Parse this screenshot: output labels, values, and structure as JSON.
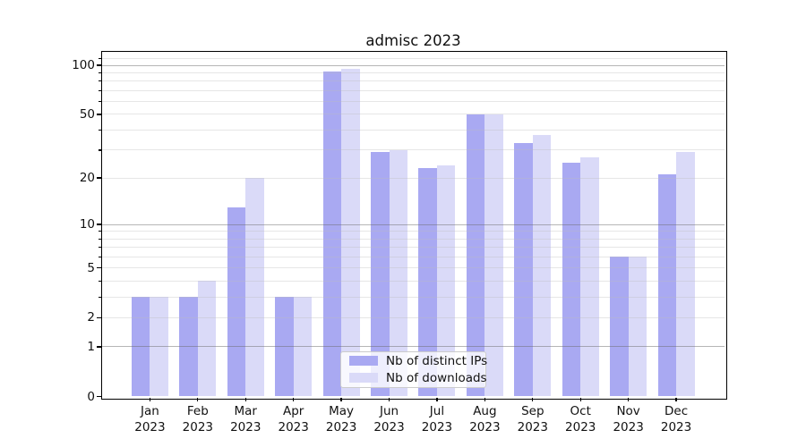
{
  "chart_data": {
    "type": "bar",
    "title": "admisc 2023",
    "categories": [
      "Jan",
      "Feb",
      "Mar",
      "Apr",
      "May",
      "Jun",
      "Jul",
      "Aug",
      "Sep",
      "Oct",
      "Nov",
      "Dec"
    ],
    "year_label": "2023",
    "series": [
      {
        "name": "Nb of distinct IPs",
        "color": "#a9a9f2",
        "values": [
          3,
          3,
          13,
          3,
          92,
          29,
          23,
          50,
          33,
          25,
          6,
          21
        ]
      },
      {
        "name": "Nb of downloads",
        "color": "#dadaf8",
        "values": [
          3,
          4,
          20,
          3,
          95,
          30,
          24,
          50,
          37,
          27,
          6,
          29
        ]
      }
    ],
    "yscale": "log1p",
    "ylim": [
      0,
      120
    ],
    "ytick_values": [
      0,
      1,
      2,
      5,
      10,
      20,
      50,
      100
    ],
    "ytick_labels": [
      "0",
      "1",
      "2",
      "5",
      "10",
      "20",
      "50",
      "100"
    ],
    "gridlines_major": [
      1,
      10,
      100
    ],
    "gridlines_minor": [
      2,
      3,
      4,
      5,
      6,
      7,
      8,
      9,
      20,
      30,
      40,
      50,
      60,
      70,
      80,
      90,
      110
    ],
    "grid": true,
    "legend_position": "lower center"
  }
}
